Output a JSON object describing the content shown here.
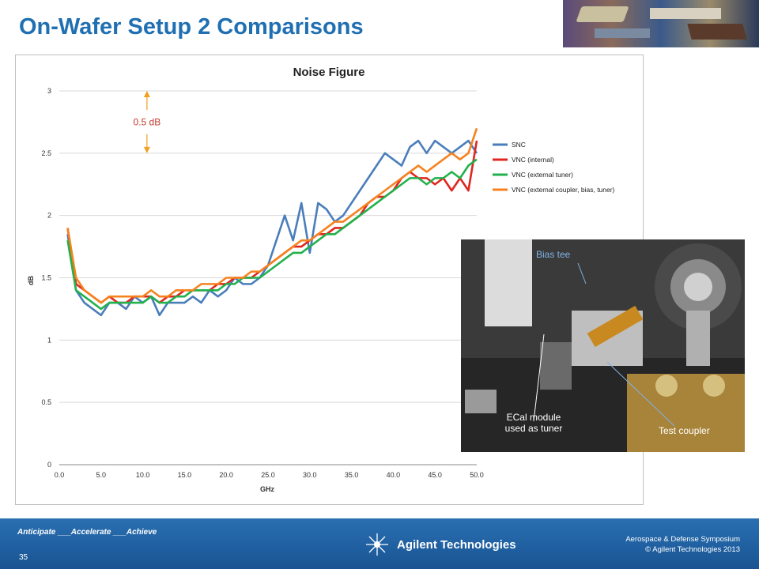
{
  "slide": {
    "title": "On-Wafer Setup 2 Comparisons"
  },
  "chart_data": {
    "type": "line",
    "title": "Noise Figure",
    "xlabel": "GHz",
    "ylabel": "dB",
    "xlim": [
      0,
      50
    ],
    "ylim": [
      0,
      3
    ],
    "x_ticks": [
      "0.0",
      "5.0",
      "10.0",
      "15.0",
      "20.0",
      "25.0",
      "30.0",
      "35.0",
      "40.0",
      "45.0",
      "50.0"
    ],
    "y_ticks": [
      "0",
      "0.5",
      "1",
      "1.5",
      "2",
      "2.5",
      "3"
    ],
    "grid": "horizontal",
    "legend": "right",
    "x": [
      1,
      2,
      3,
      4,
      5,
      6,
      7,
      8,
      9,
      10,
      11,
      12,
      13,
      14,
      15,
      16,
      17,
      18,
      19,
      20,
      21,
      22,
      23,
      24,
      25,
      26,
      27,
      28,
      29,
      30,
      31,
      32,
      33,
      34,
      35,
      36,
      37,
      38,
      39,
      40,
      41,
      42,
      43,
      44,
      45,
      46,
      47,
      48,
      49,
      50
    ],
    "series": [
      {
        "name": "SNC",
        "color": "#4a7ebb",
        "values": [
          1.85,
          1.4,
          1.3,
          1.25,
          1.2,
          1.3,
          1.3,
          1.25,
          1.35,
          1.3,
          1.35,
          1.2,
          1.3,
          1.3,
          1.3,
          1.35,
          1.3,
          1.4,
          1.35,
          1.4,
          1.5,
          1.45,
          1.45,
          1.5,
          1.6,
          1.8,
          2.0,
          1.8,
          2.1,
          1.7,
          2.1,
          2.05,
          1.95,
          2.0,
          2.1,
          2.2,
          2.3,
          2.4,
          2.5,
          2.45,
          2.4,
          2.55,
          2.6,
          2.5,
          2.6,
          2.55,
          2.5,
          2.55,
          2.6,
          2.5
        ]
      },
      {
        "name": "VNC (internal)",
        "color": "#e0261f",
        "values": [
          1.9,
          1.45,
          1.4,
          1.35,
          1.3,
          1.35,
          1.3,
          1.3,
          1.35,
          1.35,
          1.35,
          1.3,
          1.35,
          1.35,
          1.4,
          1.4,
          1.4,
          1.4,
          1.45,
          1.45,
          1.5,
          1.5,
          1.5,
          1.55,
          1.6,
          1.65,
          1.7,
          1.75,
          1.75,
          1.8,
          1.85,
          1.85,
          1.9,
          1.9,
          1.95,
          2.0,
          2.1,
          2.15,
          2.15,
          2.2,
          2.3,
          2.35,
          2.3,
          2.3,
          2.25,
          2.3,
          2.2,
          2.3,
          2.2,
          2.6
        ]
      },
      {
        "name": "VNC (external tuner)",
        "color": "#22b14c",
        "values": [
          1.8,
          1.4,
          1.35,
          1.3,
          1.25,
          1.3,
          1.3,
          1.3,
          1.3,
          1.3,
          1.35,
          1.3,
          1.3,
          1.35,
          1.35,
          1.4,
          1.4,
          1.4,
          1.4,
          1.45,
          1.45,
          1.5,
          1.5,
          1.5,
          1.55,
          1.6,
          1.65,
          1.7,
          1.7,
          1.75,
          1.8,
          1.85,
          1.85,
          1.9,
          1.95,
          2.0,
          2.05,
          2.1,
          2.15,
          2.2,
          2.25,
          2.3,
          2.3,
          2.25,
          2.3,
          2.3,
          2.35,
          2.3,
          2.4,
          2.45
        ]
      },
      {
        "name": "VNC (external coupler, bias, tuner)",
        "color": "#f6821f",
        "values": [
          1.9,
          1.5,
          1.4,
          1.35,
          1.3,
          1.35,
          1.35,
          1.35,
          1.35,
          1.35,
          1.4,
          1.35,
          1.35,
          1.4,
          1.4,
          1.4,
          1.45,
          1.45,
          1.45,
          1.5,
          1.5,
          1.5,
          1.55,
          1.55,
          1.6,
          1.65,
          1.7,
          1.75,
          1.8,
          1.8,
          1.85,
          1.9,
          1.95,
          1.95,
          2.0,
          2.05,
          2.1,
          2.15,
          2.2,
          2.25,
          2.3,
          2.35,
          2.4,
          2.35,
          2.4,
          2.45,
          2.5,
          2.45,
          2.5,
          2.7
        ]
      }
    ],
    "annotation": {
      "label": "0.5 dB",
      "from": 3.0,
      "to": 2.5,
      "at_x": 10.5
    }
  },
  "photo": {
    "bias_tee": "Bias tee",
    "ecal": "ECal module\nused as tuner",
    "coupler": "Test coupler"
  },
  "footer": {
    "tagline": "Anticipate ___Accelerate ___Achieve",
    "page": "35",
    "company": "Agilent Technologies",
    "symposium": "Aerospace & Defense Symposium",
    "copyright": "© Agilent Technologies 2013"
  },
  "colors": {
    "title": "#1f6fb2",
    "footer": "#1f5fa0",
    "annotation_arrow": "#f0a020",
    "annotation_text": "#c0392b"
  }
}
